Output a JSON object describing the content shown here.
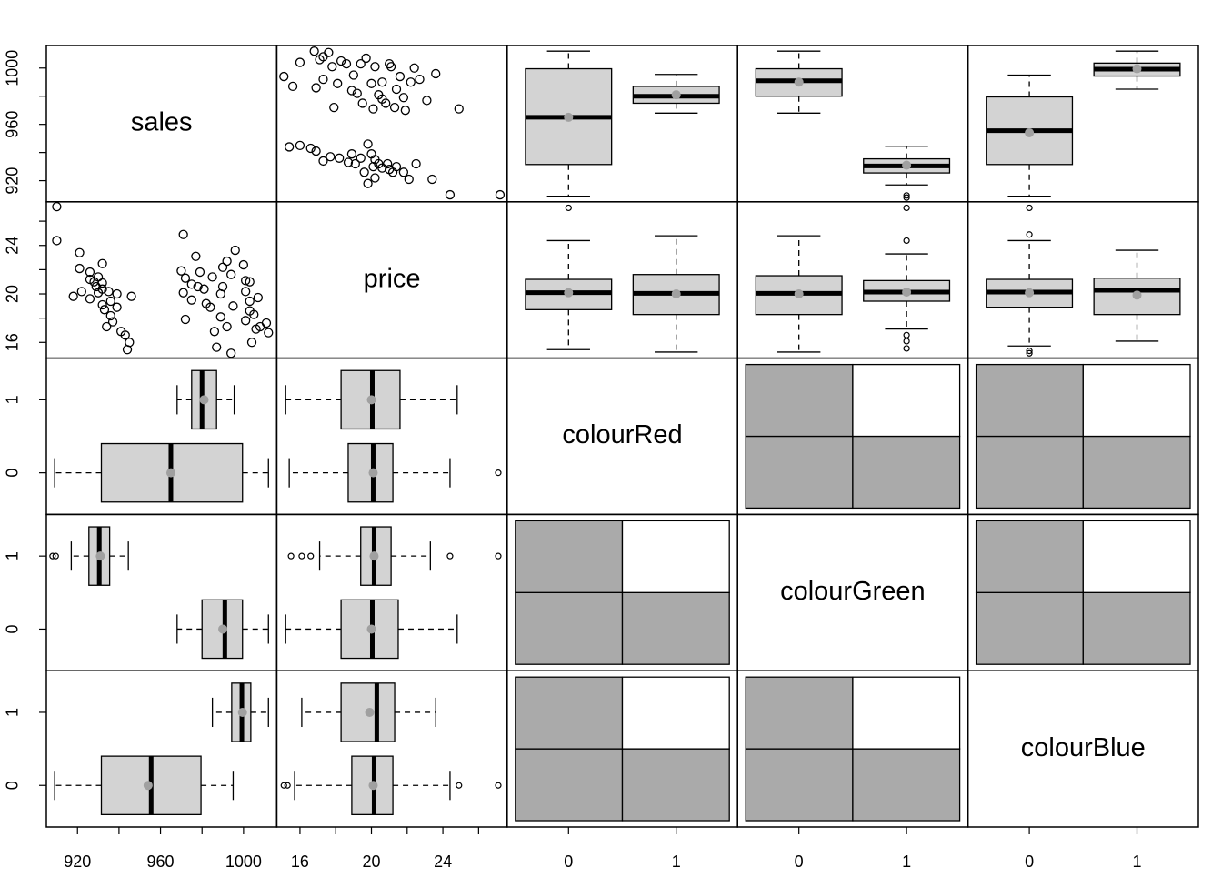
{
  "chart_data": {
    "type": "pairs",
    "variables": [
      "sales",
      "price",
      "colourRed",
      "colourGreen",
      "colourBlue"
    ],
    "axes": {
      "sales": {
        "lim": [
          905,
          1016
        ],
        "ticks": [
          920,
          960,
          1000
        ],
        "minor_ticks": [
          940,
          980
        ]
      },
      "price": {
        "lim": [
          14.7,
          27.6
        ],
        "ticks": [
          16,
          20,
          24
        ],
        "minor_ticks": [
          18,
          22,
          26
        ]
      },
      "colourRed": {
        "lim": [
          -0.57,
          1.57
        ],
        "ticks": [
          0,
          1
        ]
      },
      "colourGreen": {
        "lim": [
          -0.57,
          1.57
        ],
        "ticks": [
          0,
          1
        ]
      },
      "colourBlue": {
        "lim": [
          -0.57,
          1.57
        ],
        "ticks": [
          0,
          1
        ]
      }
    },
    "scatter": {
      "price": [
        15.1,
        15.6,
        16.0,
        16.8,
        17.1,
        17.3,
        17.6,
        17.8,
        18.1,
        18.3,
        18.6,
        19.0,
        19.2,
        19.4,
        19.7,
        20.0,
        20.2,
        20.4,
        20.6,
        20.8,
        21.0,
        21.1,
        21.3,
        21.6,
        21.8,
        22.2,
        22.4,
        22.7,
        23.1,
        23.6,
        24.9,
        16.9,
        17.9,
        18.9,
        19.5,
        20.1,
        21.4,
        21.9,
        17.3,
        20.6,
        15.4,
        16.0,
        16.6,
        16.9,
        17.3,
        17.7,
        18.2,
        18.7,
        19.1,
        19.4,
        19.6,
        19.8,
        20.0,
        20.2,
        20.4,
        20.6,
        21.0,
        21.4,
        21.8,
        22.1,
        22.5,
        23.4,
        24.4,
        27.2,
        19.8,
        20.9,
        20.2,
        18.9,
        21.2,
        20.1
      ],
      "sales": [
        994,
        987,
        1004,
        1012,
        1006,
        1008,
        1011,
        1001,
        989,
        1005,
        1003,
        995,
        982,
        1003,
        1007,
        989,
        1001,
        981,
        990,
        975,
        1003,
        1001,
        972,
        994,
        979,
        990,
        1000,
        992,
        977,
        996,
        971,
        986,
        972,
        984,
        975,
        971,
        985,
        970,
        992,
        978,
        944,
        945,
        943,
        941,
        934,
        937,
        936,
        933,
        932,
        936,
        926,
        946,
        939,
        935,
        932,
        929,
        928,
        930,
        926,
        921,
        932,
        921,
        910,
        910,
        918,
        932,
        922,
        939,
        926,
        930
      ]
    },
    "boxplots": [
      {
        "numeric": "sales",
        "factor": "colourRed",
        "groups": [
          {
            "stats": [
              909,
              931.5,
              965,
              999.5,
              1012
            ],
            "mean": 965,
            "outliers": []
          },
          {
            "stats": [
              968,
              975,
              980,
              987,
              995.5
            ],
            "mean": 981,
            "outliers": []
          }
        ]
      },
      {
        "numeric": "sales",
        "factor": "colourGreen",
        "groups": [
          {
            "stats": [
              968,
              980,
              991,
              999.5,
              1012
            ],
            "mean": 990,
            "outliers": []
          },
          {
            "stats": [
              917,
              925.5,
              930.5,
              935.5,
              944.5
            ],
            "mean": 931,
            "outliers": [
              908,
              909.5
            ]
          }
        ]
      },
      {
        "numeric": "sales",
        "factor": "colourBlue",
        "groups": [
          {
            "stats": [
              909,
              931.5,
              955.5,
              979.5,
              995
            ],
            "mean": 954,
            "outliers": []
          },
          {
            "stats": [
              985,
              994.3,
              999.2,
              1003.5,
              1012
            ],
            "mean": 999.5,
            "outliers": []
          }
        ]
      },
      {
        "numeric": "price",
        "factor": "colourRed",
        "groups": [
          {
            "stats": [
              15.4,
              18.7,
              20.1,
              21.2,
              24.4
            ],
            "mean": 20.1,
            "outliers": [
              27.1
            ]
          },
          {
            "stats": [
              15.2,
              18.3,
              20.05,
              21.6,
              24.8
            ],
            "mean": 20.0,
            "outliers": []
          }
        ]
      },
      {
        "numeric": "price",
        "factor": "colourGreen",
        "groups": [
          {
            "stats": [
              15.2,
              18.3,
              20.05,
              21.5,
              24.8
            ],
            "mean": 20.0,
            "outliers": []
          },
          {
            "stats": [
              17.1,
              19.4,
              20.15,
              21.1,
              23.3
            ],
            "mean": 20.15,
            "outliers": [
              15.5,
              16.1,
              16.6,
              24.4,
              27.1
            ]
          }
        ]
      },
      {
        "numeric": "price",
        "factor": "colourBlue",
        "groups": [
          {
            "stats": [
              15.7,
              18.9,
              20.15,
              21.2,
              24.4
            ],
            "mean": 20.1,
            "outliers": [
              15.1,
              15.3,
              24.9,
              27.1
            ]
          },
          {
            "stats": [
              16.1,
              18.3,
              20.3,
              21.3,
              23.6
            ],
            "mean": 19.9,
            "outliers": []
          }
        ]
      }
    ],
    "mosaic": {
      "cells": [
        [
          1,
          1
        ],
        [
          1,
          0
        ]
      ]
    }
  }
}
